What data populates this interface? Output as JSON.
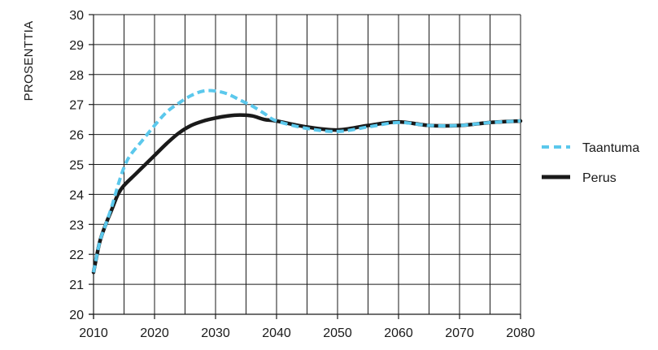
{
  "chart_data": {
    "type": "line",
    "title": "",
    "xlabel": "",
    "ylabel": "PROSENTTIA",
    "xlim": [
      2010,
      2080
    ],
    "ylim": [
      20,
      30
    ],
    "x_ticks": [
      2010,
      2020,
      2030,
      2040,
      2050,
      2060,
      2070,
      2080
    ],
    "y_ticks": [
      20,
      21,
      22,
      23,
      24,
      25,
      26,
      27,
      28,
      29,
      30
    ],
    "x_tick_labels": [
      "2010",
      "2020",
      "2030",
      "2040",
      "2050",
      "2060",
      "2070",
      "2080"
    ],
    "y_tick_labels": [
      "20",
      "21",
      "22",
      "23",
      "24",
      "25",
      "26",
      "27",
      "28",
      "29",
      "30"
    ],
    "x_minor_grid_step": 5,
    "grid": true,
    "legend_position": "right",
    "series": [
      {
        "name": "Taantuma",
        "color": "#5bc8ec",
        "style": "dashed",
        "x": [
          2010,
          2011,
          2012,
          2013,
          2014,
          2015,
          2016,
          2018,
          2020,
          2022,
          2024,
          2026,
          2028,
          2030,
          2032,
          2034,
          2036,
          2038,
          2040,
          2045,
          2050,
          2055,
          2060,
          2065,
          2070,
          2075,
          2080
        ],
        "y": [
          21.4,
          22.4,
          23.0,
          23.6,
          24.3,
          24.9,
          25.3,
          25.8,
          26.3,
          26.75,
          27.05,
          27.3,
          27.45,
          27.45,
          27.35,
          27.15,
          26.95,
          26.7,
          26.45,
          26.2,
          26.1,
          26.25,
          26.4,
          26.3,
          26.3,
          26.4,
          26.45
        ]
      },
      {
        "name": "Perus",
        "color": "#1a1a1a",
        "style": "solid",
        "x": [
          2010,
          2011,
          2012,
          2013,
          2014,
          2015,
          2017,
          2020,
          2022,
          2024,
          2026,
          2028,
          2030,
          2032,
          2034,
          2036,
          2038,
          2040,
          2045,
          2050,
          2055,
          2060,
          2065,
          2070,
          2075,
          2080
        ],
        "y": [
          21.4,
          22.4,
          23.0,
          23.5,
          24.0,
          24.3,
          24.7,
          25.3,
          25.7,
          26.05,
          26.3,
          26.45,
          26.55,
          26.62,
          26.65,
          26.62,
          26.5,
          26.45,
          26.25,
          26.15,
          26.3,
          26.42,
          26.3,
          26.3,
          26.4,
          26.45
        ]
      }
    ]
  }
}
